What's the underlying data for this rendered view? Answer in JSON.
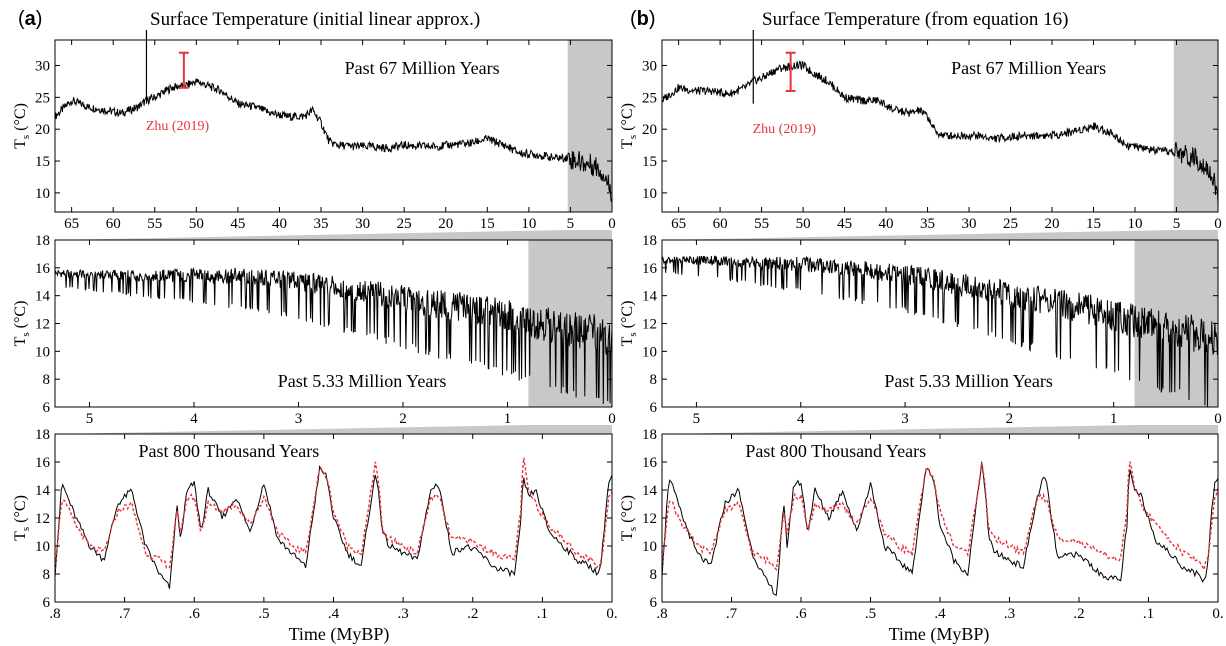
{
  "figure": {
    "panels": [
      {
        "letter_open": "(",
        "letter": "a",
        "letter_close": ")",
        "title": "Surface Temperature (initial linear approx.)"
      },
      {
        "letter_open": "(",
        "letter": "b",
        "letter_close": ")",
        "title": "Surface Temperature (from equation 16)"
      }
    ],
    "xlabel": "Time (MyBP)",
    "ylabel_main": "T",
    "ylabel_sub": "s",
    "ylabel_unit": " (°C)",
    "reference_label": "Zhu (2019)",
    "colors": {
      "model": "#000000",
      "observed": "#e8333a",
      "reference": "#e8333a",
      "shade": "#c8c8ca"
    }
  },
  "chart_data": [
    {
      "panel": "a",
      "row": "top",
      "type": "line",
      "title": "Past 67 Million Years",
      "xlim": [
        67,
        0
      ],
      "ylim": [
        7,
        34
      ],
      "xticks": [
        "65",
        "60",
        "55",
        "50",
        "45",
        "40",
        "35",
        "30",
        "25",
        "20",
        "15",
        "10",
        "5",
        "0"
      ],
      "yticks": [
        "10",
        "15",
        "20",
        "25",
        "30"
      ],
      "shaded_range": [
        5.33,
        0
      ],
      "reference_bar": {
        "label": "Zhu (2019)",
        "x": 51.5,
        "ymin": 26.5,
        "ymax": 32
      },
      "spike": {
        "x": 56,
        "y": 34
      },
      "series": [
        {
          "color": "#000000",
          "x": [
            67,
            65,
            63,
            61,
            59,
            57,
            56,
            55,
            53,
            51,
            50,
            49,
            47,
            45,
            43,
            41,
            39,
            37,
            36,
            35,
            34,
            33,
            31,
            29,
            27,
            25,
            23,
            21,
            19,
            17,
            15,
            13,
            11,
            9,
            7,
            5.33,
            4,
            3,
            2,
            1,
            0.3,
            0
          ],
          "y": [
            22,
            24.5,
            23.5,
            23,
            22.5,
            23.5,
            24.5,
            25,
            26.5,
            27,
            27.5,
            27,
            26,
            24,
            23.5,
            22.5,
            22,
            22,
            23,
            21,
            18,
            17.5,
            17.3,
            17.3,
            17,
            17.5,
            17.3,
            17.3,
            17.6,
            17.8,
            18.5,
            17.5,
            16.2,
            16,
            15.5,
            15.5,
            15,
            14.5,
            14.3,
            13,
            11,
            10
          ]
        }
      ]
    },
    {
      "panel": "a",
      "row": "middle",
      "type": "line",
      "title": "Past 5.33 Million Years",
      "xlim": [
        5.33,
        0
      ],
      "ylim": [
        6,
        18
      ],
      "xticks": [
        "5",
        "4",
        "3",
        "2",
        "1",
        "0"
      ],
      "yticks": [
        "6",
        "8",
        "10",
        "12",
        "14",
        "16",
        "18"
      ],
      "shaded_range": [
        0.8,
        0
      ],
      "series": [
        {
          "color": "#000000",
          "x": [
            5.33,
            4.8,
            4.4,
            4,
            3.6,
            3.2,
            3,
            2.8,
            2.6,
            2.4,
            2.2,
            2,
            1.8,
            1.6,
            1.4,
            1.2,
            1,
            0.8,
            0.6,
            0.4,
            0.2,
            0
          ],
          "y": [
            15.5,
            15.4,
            15.3,
            15.3,
            15.2,
            15,
            14.8,
            14.5,
            14.3,
            14,
            13.8,
            13.5,
            13.2,
            13,
            12.8,
            12.5,
            12.2,
            11.8,
            11.5,
            11.2,
            11,
            10.5
          ]
        }
      ]
    },
    {
      "panel": "a",
      "row": "bottom",
      "type": "line",
      "title": "Past 800 Thousand Years",
      "xlabel": "Time (MyBP)",
      "xlim": [
        0.8,
        0
      ],
      "ylim": [
        6,
        18
      ],
      "xticks": [
        ".8",
        ".7",
        ".6",
        ".5",
        ".4",
        ".3",
        ".2",
        ".1",
        "0."
      ],
      "yticks": [
        "6",
        "8",
        "10",
        "12",
        "14",
        "16",
        "18"
      ],
      "series": [
        {
          "color": "#000000",
          "x": [
            0.8,
            0.79,
            0.77,
            0.75,
            0.73,
            0.71,
            0.69,
            0.67,
            0.65,
            0.635,
            0.625,
            0.62,
            0.61,
            0.6,
            0.59,
            0.58,
            0.56,
            0.54,
            0.52,
            0.5,
            0.48,
            0.46,
            0.44,
            0.43,
            0.42,
            0.41,
            0.4,
            0.38,
            0.36,
            0.35,
            0.34,
            0.335,
            0.33,
            0.32,
            0.3,
            0.28,
            0.26,
            0.25,
            0.245,
            0.24,
            0.23,
            0.21,
            0.19,
            0.17,
            0.14,
            0.13,
            0.128,
            0.12,
            0.11,
            0.09,
            0.07,
            0.05,
            0.03,
            0.02,
            0.015,
            0.01,
            0.005,
            0
          ],
          "y": [
            8,
            14.5,
            12,
            10,
            9,
            13,
            14,
            10,
            8,
            7,
            13,
            10.5,
            14,
            14.5,
            11,
            14,
            12,
            13.5,
            11,
            14.5,
            10.5,
            9.5,
            8.5,
            12,
            15.5,
            15,
            12,
            9.5,
            8.5,
            12,
            15,
            14,
            11,
            10,
            9.5,
            9,
            14,
            14.5,
            13.5,
            12,
            9.5,
            10,
            9.5,
            8.5,
            8,
            12,
            15,
            13.5,
            14,
            11,
            10,
            9,
            8.5,
            8,
            9,
            12,
            14.5,
            15
          ]
        },
        {
          "color": "#e8333a",
          "x": [
            0.8,
            0.79,
            0.77,
            0.75,
            0.73,
            0.71,
            0.69,
            0.67,
            0.65,
            0.635,
            0.625,
            0.62,
            0.61,
            0.6,
            0.59,
            0.58,
            0.56,
            0.54,
            0.52,
            0.5,
            0.48,
            0.46,
            0.44,
            0.43,
            0.42,
            0.41,
            0.4,
            0.38,
            0.36,
            0.35,
            0.34,
            0.335,
            0.33,
            0.32,
            0.3,
            0.28,
            0.26,
            0.25,
            0.245,
            0.24,
            0.23,
            0.21,
            0.19,
            0.17,
            0.14,
            0.13,
            0.128,
            0.12,
            0.11,
            0.09,
            0.07,
            0.05,
            0.03,
            0.02,
            0.015,
            0.01,
            0.005,
            0
          ],
          "y": [
            8.5,
            13.5,
            11.5,
            10,
            9.5,
            12.5,
            13,
            9.5,
            9,
            8.5,
            12.5,
            11,
            13.5,
            13.5,
            11,
            13,
            12.5,
            13,
            11.5,
            13.5,
            11,
            10,
            9.5,
            12.5,
            15.5,
            15,
            12.5,
            10,
            9.5,
            12.5,
            16,
            14.5,
            11,
            10.5,
            10,
            9.5,
            13.5,
            13.5,
            13,
            12,
            10.5,
            10.5,
            10,
            9.5,
            9,
            13,
            16.5,
            14,
            13,
            11.5,
            10.5,
            9.5,
            9,
            8.5,
            9,
            11,
            13.5,
            14
          ]
        }
      ]
    },
    {
      "panel": "b",
      "row": "top",
      "type": "line",
      "title": "Past 67 Million Years",
      "xlim": [
        67,
        0
      ],
      "ylim": [
        7,
        34
      ],
      "xticks": [
        "65",
        "60",
        "55",
        "50",
        "45",
        "40",
        "35",
        "30",
        "25",
        "20",
        "15",
        "10",
        "5",
        "0"
      ],
      "yticks": [
        "10",
        "15",
        "20",
        "25",
        "30"
      ],
      "shaded_range": [
        5.33,
        0
      ],
      "reference_bar": {
        "label": "Zhu (2019)",
        "x": 51.5,
        "ymin": 26,
        "ymax": 32
      },
      "spike": {
        "x": 56,
        "y": 34
      },
      "series": [
        {
          "color": "#000000",
          "x": [
            67,
            65,
            63,
            61,
            59,
            57,
            56,
            55,
            53,
            51,
            50,
            49,
            47,
            45,
            43,
            41,
            39,
            37,
            36,
            35,
            34,
            33,
            31,
            29,
            27,
            25,
            23,
            21,
            19,
            17,
            15,
            13,
            11,
            9,
            7,
            5.33,
            4,
            3,
            2,
            1,
            0.3,
            0
          ],
          "y": [
            24.5,
            26.5,
            26,
            26,
            25.5,
            26.5,
            27.5,
            28,
            29.5,
            30,
            30,
            29,
            27.5,
            25,
            24.5,
            24.5,
            23,
            22.5,
            23,
            22,
            19.5,
            19,
            19,
            19,
            18.5,
            18.8,
            19,
            19,
            19.2,
            19.8,
            20.5,
            19.5,
            17.5,
            17,
            16.5,
            16.5,
            16,
            15.5,
            15,
            13.5,
            11,
            9
          ]
        }
      ]
    },
    {
      "panel": "b",
      "row": "middle",
      "type": "line",
      "title": "Past 5.33 Million Years",
      "xlim": [
        5.33,
        0
      ],
      "ylim": [
        6,
        18
      ],
      "xticks": [
        "5",
        "4",
        "3",
        "2",
        "1",
        "0"
      ],
      "yticks": [
        "6",
        "8",
        "10",
        "12",
        "14",
        "16",
        "18"
      ],
      "shaded_range": [
        0.8,
        0
      ],
      "series": [
        {
          "color": "#000000",
          "x": [
            5.33,
            4.8,
            4.4,
            4,
            3.6,
            3.2,
            3,
            2.8,
            2.6,
            2.4,
            2.2,
            2,
            1.8,
            1.6,
            1.4,
            1.2,
            1,
            0.8,
            0.6,
            0.4,
            0.2,
            0
          ],
          "y": [
            16.5,
            16.4,
            16.2,
            16.1,
            15.8,
            15.5,
            15.3,
            15,
            14.7,
            14.4,
            14.1,
            13.8,
            13.5,
            13.2,
            12.9,
            12.6,
            12.2,
            11.8,
            11.5,
            11.2,
            10.8,
            10.3
          ]
        }
      ]
    },
    {
      "panel": "b",
      "row": "bottom",
      "type": "line",
      "title": "Past 800 Thousand Years",
      "xlabel": "Time (MyBP)",
      "xlim": [
        0.8,
        0
      ],
      "ylim": [
        6,
        18
      ],
      "xticks": [
        ".8",
        ".7",
        ".6",
        ".5",
        ".4",
        ".3",
        ".2",
        ".1",
        "0."
      ],
      "yticks": [
        "6",
        "8",
        "10",
        "12",
        "14",
        "16",
        "18"
      ],
      "series": [
        {
          "color": "#000000",
          "x": [
            0.8,
            0.79,
            0.77,
            0.75,
            0.73,
            0.71,
            0.69,
            0.67,
            0.65,
            0.635,
            0.625,
            0.62,
            0.61,
            0.6,
            0.59,
            0.58,
            0.56,
            0.54,
            0.52,
            0.5,
            0.48,
            0.46,
            0.44,
            0.43,
            0.42,
            0.41,
            0.4,
            0.38,
            0.36,
            0.35,
            0.34,
            0.335,
            0.33,
            0.32,
            0.3,
            0.28,
            0.26,
            0.25,
            0.245,
            0.24,
            0.23,
            0.21,
            0.19,
            0.17,
            0.14,
            0.13,
            0.128,
            0.12,
            0.11,
            0.09,
            0.07,
            0.05,
            0.03,
            0.02,
            0.015,
            0.01,
            0.005,
            0
          ],
          "y": [
            8,
            15,
            12,
            9.5,
            8.5,
            13,
            14,
            9.5,
            7.5,
            6.5,
            13,
            10,
            14.5,
            14.5,
            11,
            14,
            12,
            14,
            11,
            14.5,
            10,
            9,
            8,
            12,
            15.5,
            15,
            11.5,
            9,
            8,
            12,
            16,
            14,
            10.5,
            9.5,
            9,
            8.5,
            13.5,
            15,
            14,
            12,
            9,
            9.5,
            9,
            8,
            7.5,
            12,
            15.5,
            14,
            13.5,
            10.5,
            9.5,
            8.5,
            8,
            7.5,
            8.5,
            12,
            14.5,
            15
          ]
        },
        {
          "color": "#e8333a",
          "x": [
            0.8,
            0.79,
            0.77,
            0.75,
            0.73,
            0.71,
            0.69,
            0.67,
            0.65,
            0.635,
            0.625,
            0.62,
            0.61,
            0.6,
            0.59,
            0.58,
            0.56,
            0.54,
            0.52,
            0.5,
            0.48,
            0.46,
            0.44,
            0.43,
            0.42,
            0.41,
            0.4,
            0.38,
            0.36,
            0.35,
            0.34,
            0.335,
            0.33,
            0.32,
            0.3,
            0.28,
            0.26,
            0.25,
            0.245,
            0.24,
            0.23,
            0.21,
            0.19,
            0.17,
            0.14,
            0.13,
            0.128,
            0.12,
            0.11,
            0.09,
            0.07,
            0.05,
            0.03,
            0.02,
            0.015,
            0.01,
            0.005,
            0
          ],
          "y": [
            8.5,
            13.5,
            11.5,
            10,
            9.5,
            12.5,
            13,
            9.5,
            9,
            8.5,
            12.5,
            11,
            13.5,
            13.5,
            11,
            13,
            12.5,
            13,
            11.5,
            13.5,
            11,
            10,
            9.5,
            12.5,
            15.5,
            15,
            12.5,
            10,
            9.5,
            12.5,
            16,
            14.5,
            11,
            10.5,
            10,
            9.5,
            13.5,
            13.5,
            13,
            12,
            10.5,
            10.5,
            10,
            9.5,
            9,
            13,
            16.5,
            14,
            13,
            11.5,
            10.5,
            9.5,
            9,
            8.5,
            9,
            11,
            13.5,
            14
          ]
        }
      ]
    }
  ]
}
